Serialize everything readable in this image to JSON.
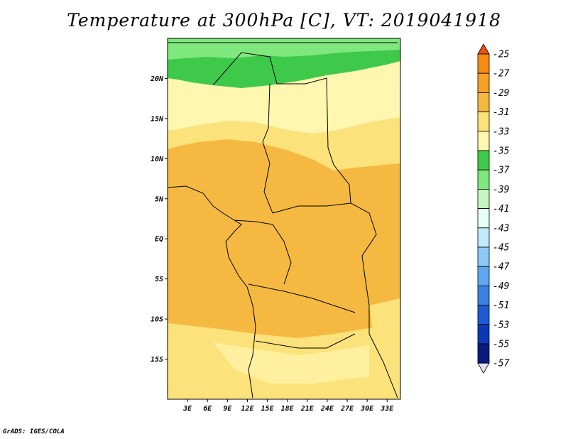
{
  "title": "Temperature at 300hPa [C], VT: 2019041918",
  "credit": "GrADS: IGES/COLA",
  "map": {
    "lat_labels": [
      "20N",
      "15N",
      "10N",
      "5N",
      "EQ",
      "5S",
      "10S",
      "15S"
    ],
    "lon_labels": [
      "3E",
      "6E",
      "9E",
      "12E",
      "15E",
      "18E",
      "21E",
      "24E",
      "27E",
      "30E",
      "33E"
    ],
    "lat_values": [
      20,
      15,
      10,
      5,
      0,
      -5,
      -10,
      -15
    ],
    "lon_values": [
      3,
      6,
      9,
      12,
      15,
      18,
      21,
      24,
      27,
      30,
      33
    ],
    "lon_range": [
      0,
      35
    ],
    "lat_range": [
      -20,
      25
    ],
    "dominant_fields": [
      {
        "band": "-39..-37",
        "color": "#7ee87e",
        "area": "far north edge"
      },
      {
        "band": "-37..-35",
        "color": "#3fc94a",
        "area": "Sahara strip"
      },
      {
        "band": "-35..-33",
        "color": "#fff6b0",
        "area": "Sahel / Sudan"
      },
      {
        "band": "-33..-31",
        "color": "#fbe27a",
        "area": "north-central, southeast"
      },
      {
        "band": "-31..-29",
        "color": "#f5b942",
        "area": "equatorial Africa"
      }
    ]
  },
  "colorbar": {
    "labels": [
      "-25",
      "-27",
      "-29",
      "-31",
      "-33",
      "-35",
      "-37",
      "-39",
      "-41",
      "-43",
      "-45",
      "-47",
      "-49",
      "-51",
      "-53",
      "-55",
      "-57"
    ],
    "colors": [
      "#f04f10",
      "#f58a16",
      "#f5a128",
      "#f5b942",
      "#fbe27a",
      "#fff6b0",
      "#3fc94a",
      "#7ee87e",
      "#c5f6c0",
      "#e6fff6",
      "#c3e9fa",
      "#8ec9f5",
      "#5fa8ee",
      "#3a82e4",
      "#1e5bd3",
      "#0d38b4",
      "#0a1a7a",
      "#e0e0f6"
    ]
  }
}
